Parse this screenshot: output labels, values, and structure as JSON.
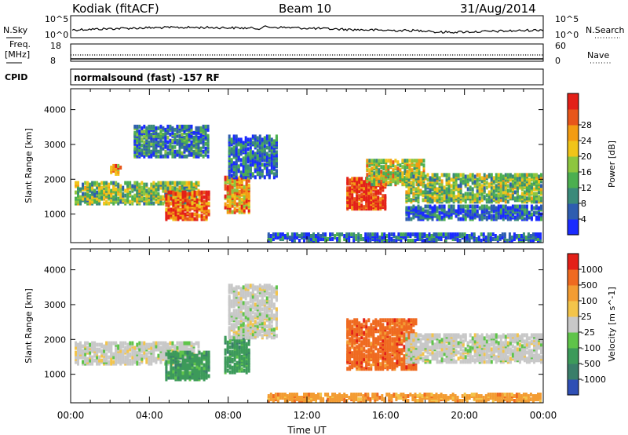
{
  "header": {
    "station": "Kodiak (fitACF)",
    "beam": "Beam 10",
    "date": "31/Aug/2014"
  },
  "strips": {
    "nsky_label": "N.Sky",
    "nsky_ticks": [
      "10^5",
      "10^0"
    ],
    "nsearch_label": "N.Search",
    "nsearch_ticks": [
      "10^5",
      "10^0"
    ],
    "freq_label": "Freq.",
    "freq_unit": "[MHz]",
    "freq_ticks": [
      "18",
      "8"
    ],
    "nave_label": "Nave",
    "nave_ticks": [
      "60",
      "0"
    ],
    "cpid_label": "CPID",
    "cpid_text": "normalsound (fast) -157 RF"
  },
  "chart_data": [
    {
      "type": "heatmap",
      "panel": "power",
      "ylabel": "Slant Range [km]",
      "xlabel": "Time UT",
      "x_ticks": [
        "00:00",
        "04:00",
        "08:00",
        "12:00",
        "16:00",
        "20:00",
        "00:00"
      ],
      "xlim_hours": [
        0,
        24
      ],
      "ylim_km": [
        180,
        4600
      ],
      "y_ticks": [
        1000,
        2000,
        3000,
        4000
      ],
      "colorbar_label": "Power [dB]",
      "colorbar_ticks": [
        "4",
        "8",
        "12",
        "16",
        "20",
        "24",
        "28"
      ],
      "colorbar_colors": [
        "#1a2bff",
        "#2e5db0",
        "#3a8a7a",
        "#4caf50",
        "#8dc63f",
        "#f0c419",
        "#f39c12",
        "#e8561a",
        "#e32018"
      ],
      "echo_regions": [
        {
          "t0": 0.2,
          "t1": 6.5,
          "r0": 1250,
          "r1": 1850,
          "level": 0.45
        },
        {
          "t0": 2.0,
          "t1": 2.6,
          "r0": 2100,
          "r1": 2400,
          "level": 0.75
        },
        {
          "t0": 4.8,
          "t1": 7.0,
          "r0": 800,
          "r1": 1600,
          "level": 0.85
        },
        {
          "t0": 7.8,
          "t1": 9.0,
          "r0": 1000,
          "r1": 2000,
          "level": 0.7
        },
        {
          "t0": 3.2,
          "t1": 7.0,
          "r0": 2600,
          "r1": 3500,
          "level": 0.25
        },
        {
          "t0": 8.0,
          "t1": 10.5,
          "r0": 2000,
          "r1": 3200,
          "level": 0.2
        },
        {
          "t0": 14.0,
          "t1": 16.0,
          "r0": 1100,
          "r1": 2000,
          "level": 0.95
        },
        {
          "t0": 15.0,
          "t1": 18.0,
          "r0": 1800,
          "r1": 2500,
          "level": 0.55
        },
        {
          "t0": 17.0,
          "t1": 23.9,
          "r0": 1300,
          "r1": 2100,
          "level": 0.45
        },
        {
          "t0": 17.0,
          "t1": 23.9,
          "r0": 800,
          "r1": 1200,
          "level": 0.15
        },
        {
          "t0": 10.0,
          "t1": 23.9,
          "r0": 180,
          "r1": 400,
          "level": 0.15
        }
      ]
    },
    {
      "type": "heatmap",
      "panel": "velocity",
      "ylabel": "Slant Range [km]",
      "xlabel": "Time UT",
      "x_ticks": [
        "00:00",
        "04:00",
        "08:00",
        "12:00",
        "16:00",
        "20:00",
        "00:00"
      ],
      "xlim_hours": [
        0,
        24
      ],
      "ylim_km": [
        180,
        4600
      ],
      "y_ticks": [
        1000,
        2000,
        3000,
        4000
      ],
      "colorbar_label": "Velocity [m s^-1]",
      "colorbar_ticks": [
        "1000",
        "500",
        "100",
        "25",
        "-25",
        "-100",
        "-500",
        "-1000"
      ],
      "colorbar_colors": [
        "#2f4fb5",
        "#3a7e6a",
        "#3c9a5a",
        "#5fc44a",
        "#c8c8c8",
        "#f3c44a",
        "#f39c32",
        "#ef6a20",
        "#e32018"
      ],
      "echo_regions": [
        {
          "t0": 0.2,
          "t1": 6.5,
          "r0": 1250,
          "r1": 1850,
          "level": "gray"
        },
        {
          "t0": 4.8,
          "t1": 7.0,
          "r0": 800,
          "r1": 1600,
          "level": "green"
        },
        {
          "t0": 7.8,
          "t1": 9.0,
          "r0": 1000,
          "r1": 2000,
          "level": "green"
        },
        {
          "t0": 14.0,
          "t1": 17.5,
          "r0": 1100,
          "r1": 2500,
          "level": "orange"
        },
        {
          "t0": 17.0,
          "t1": 23.9,
          "r0": 1300,
          "r1": 2100,
          "level": "gray"
        },
        {
          "t0": 8.0,
          "t1": 10.5,
          "r0": 2000,
          "r1": 3500,
          "level": "gray"
        },
        {
          "t0": 10.0,
          "t1": 23.9,
          "r0": 180,
          "r1": 400,
          "level": "yellow"
        }
      ]
    }
  ]
}
